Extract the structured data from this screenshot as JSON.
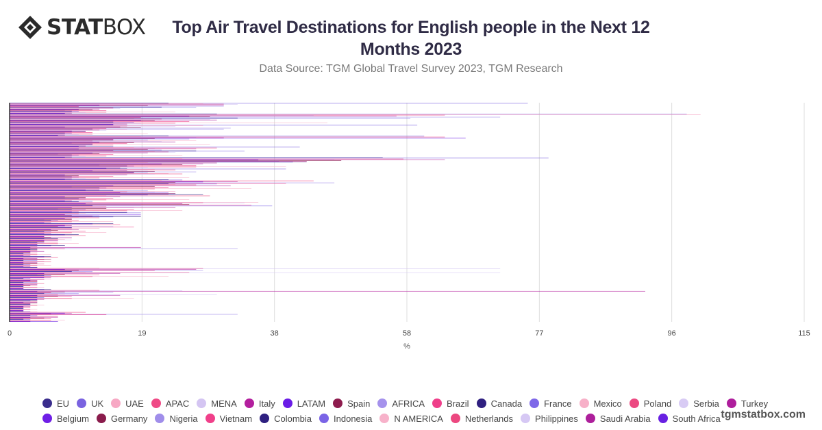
{
  "brand": {
    "logo_bold": "STAT",
    "logo_light": "BOX",
    "watermark": "tgmstatbox.com"
  },
  "colors": {
    "EU": "#3a2d8c",
    "UK": "#7a63e0",
    "UAE": "#f7a8c4",
    "APAC": "#ef4a86",
    "MENA": "#d4c5f2",
    "Italy": "#b31f9e",
    "LATAM": "#6a1ce6",
    "Spain": "#8e1c4e",
    "AFRICA": "#a592ec",
    "Brazil": "#ef3f8a",
    "Canada": "#2f2080",
    "France": "#7e68e8",
    "Mexico": "#f7b0c8",
    "Poland": "#ec4a82",
    "Serbia": "#d8cbf4",
    "Turkey": "#ae1e9c",
    "Belgium": "#6f1fe6",
    "Germany": "#8a1c4c",
    "Nigeria": "#a08eea",
    "Vietnam": "#f0408a",
    "Colombia": "#2e2080",
    "Indonesia": "#7a64e6",
    "N AMERICA": "#f7b2ca",
    "Netherlands": "#ec4880",
    "Philippines": "#d6c8f4",
    "Saudi Arabia": "#ad1f9b",
    "South Africa": "#6820e2",
    "gridline": "#dddddd",
    "axis": "#333333"
  },
  "chart_data": {
    "type": "bar",
    "orientation": "horizontal",
    "title": "Top Air Travel Destinations for English people in the Next 12 Months 2023",
    "subtitle": "Data Source: TGM Global Travel Survey 2023, TGM Research",
    "xlabel": "%",
    "ylabel": "",
    "xlim": [
      0,
      115
    ],
    "x_ticks": [
      "0",
      "19",
      "38",
      "58",
      "77",
      "96",
      "115"
    ],
    "grid": true,
    "legend_position": "bottom",
    "note": "Category labels on the y-axis are not visible in the image; 27 series of 20 values each are read from bar lengths.",
    "series": [
      {
        "name": "EU",
        "values": [
          23,
          30,
          15,
          23,
          15,
          54,
          17,
          23,
          15,
          10,
          17,
          15,
          10,
          8,
          6,
          4,
          2,
          6,
          4,
          2
        ]
      },
      {
        "name": "UK",
        "values": [
          75,
          98,
          59,
          60,
          42,
          78,
          40,
          25,
          20,
          12,
          19,
          12,
          8,
          6,
          5,
          4,
          3,
          5,
          3,
          3
        ]
      },
      {
        "name": "UAE",
        "values": [
          28,
          100,
          28,
          19,
          18,
          25,
          21,
          22,
          24,
          36,
          11,
          8,
          6,
          4,
          3,
          13,
          6,
          4,
          2,
          4
        ]
      },
      {
        "name": "APAC",
        "values": [
          31,
          63,
          17,
          63,
          30,
          57,
          24,
          44,
          17,
          28,
          10,
          16,
          11,
          4,
          7,
          28,
          5,
          13,
          4,
          11
        ]
      },
      {
        "name": "MENA",
        "values": [
          33,
          44,
          24,
          27,
          21,
          47,
          20,
          29,
          21,
          34,
          9,
          12,
          9,
          4,
          5,
          71,
          5,
          25,
          3,
          8
        ]
      },
      {
        "name": "Italy",
        "values": [
          31,
          56,
          16,
          31,
          27,
          63,
          17,
          33,
          16,
          25,
          8,
          9,
          5,
          19,
          4,
          27,
          4,
          92,
          4,
          9
        ]
      },
      {
        "name": "LATAM",
        "values": [
          13,
          26,
          8,
          66,
          10,
          36,
          12,
          28,
          23,
          11,
          19,
          8,
          5,
          3,
          2,
          8,
          3,
          4,
          2,
          8
        ]
      },
      {
        "name": "Spain",
        "values": [
          20,
          29,
          19,
          21,
          20,
          48,
          21,
          24,
          24,
          26,
          9,
          7,
          6,
          4,
          6,
          10,
          4,
          8,
          4,
          6
        ]
      },
      {
        "name": "AFRICA",
        "values": [
          31,
          71,
          32,
          26,
          22,
          39,
          27,
          47,
          24,
          19,
          13,
          15,
          9,
          33,
          4,
          28,
          3,
          15,
          3,
          33
        ]
      },
      {
        "name": "Brazil",
        "values": [
          10,
          19,
          14,
          15,
          15,
          43,
          18,
          40,
          23,
          35,
          12,
          18,
          9,
          8,
          5,
          21,
          4,
          6,
          3,
          14
        ]
      },
      {
        "name": "Canada",
        "values": [
          22,
          33,
          12,
          15,
          27,
          43,
          18,
          23,
          28,
          12,
          19,
          9,
          7,
          4,
          2,
          9,
          2,
          5,
          3,
          3
        ]
      },
      {
        "name": "France",
        "values": [
          27,
          58,
          31,
          20,
          34,
          41,
          20,
          30,
          20,
          38,
          15,
          9,
          5,
          3,
          4,
          12,
          4,
          10,
          3,
          4
        ]
      },
      {
        "name": "Mexico",
        "values": [
          15,
          18,
          17,
          27,
          21,
          20,
          23,
          24,
          14,
          12,
          10,
          13,
          8,
          4,
          5,
          11,
          4,
          8,
          5,
          4
        ]
      },
      {
        "name": "Poland",
        "values": [
          15,
          22,
          13,
          12,
          23,
          30,
          25,
          27,
          29,
          14,
          13,
          9,
          7,
          4,
          6,
          26,
          5,
          7,
          4,
          7
        ]
      },
      {
        "name": "Serbia",
        "values": [
          16,
          29,
          14,
          22,
          24,
          30,
          21,
          21,
          24,
          18,
          11,
          9,
          9,
          4,
          5,
          71,
          4,
          30,
          3,
          4
        ]
      },
      {
        "name": "Turkey",
        "values": [
          13,
          30,
          9,
          24,
          20,
          28,
          17,
          32,
          16,
          24,
          9,
          10,
          7,
          5,
          4,
          16,
          4,
          16,
          3,
          7
        ]
      },
      {
        "name": "Belgium",
        "values": [
          10,
          19,
          11,
          13,
          12,
          22,
          8,
          15,
          8,
          9,
          8,
          6,
          5,
          3,
          2,
          5,
          2,
          4,
          2,
          3
        ]
      },
      {
        "name": "Germany",
        "values": [
          12,
          21,
          11,
          18,
          13,
          25,
          10,
          21,
          11,
          14,
          9,
          7,
          5,
          3,
          4,
          8,
          3,
          7,
          2,
          5
        ]
      },
      {
        "name": "Nigeria",
        "values": [
          8,
          15,
          9,
          9,
          7,
          13,
          8,
          9,
          8,
          7,
          5,
          4,
          3,
          2,
          2,
          4,
          2,
          3,
          2,
          2
        ]
      },
      {
        "name": "Vietnam",
        "values": [
          14,
          26,
          12,
          17,
          15,
          27,
          15,
          23,
          15,
          18,
          10,
          11,
          7,
          4,
          5,
          13,
          4,
          9,
          3,
          6
        ]
      },
      {
        "name": "Colombia",
        "values": [
          9,
          15,
          8,
          12,
          9,
          17,
          9,
          13,
          10,
          9,
          6,
          5,
          4,
          2,
          2,
          5,
          2,
          4,
          2,
          2
        ]
      },
      {
        "name": "Indonesia",
        "values": [
          10,
          18,
          9,
          12,
          10,
          18,
          10,
          14,
          11,
          11,
          7,
          6,
          5,
          3,
          3,
          6,
          2,
          5,
          2,
          3
        ]
      },
      {
        "name": "N AMERICA",
        "values": [
          24,
          46,
          20,
          29,
          25,
          40,
          26,
          35,
          26,
          25,
          15,
          14,
          10,
          6,
          6,
          23,
          5,
          18,
          4,
          8
        ]
      },
      {
        "name": "Netherlands",
        "values": [
          14,
          24,
          12,
          15,
          14,
          27,
          13,
          21,
          14,
          17,
          9,
          9,
          7,
          4,
          4,
          12,
          4,
          9,
          3,
          6
        ]
      },
      {
        "name": "Philippines",
        "values": [
          11,
          19,
          10,
          12,
          11,
          20,
          11,
          15,
          12,
          13,
          7,
          7,
          5,
          3,
          3,
          7,
          3,
          6,
          2,
          3
        ]
      },
      {
        "name": "Saudi Arabia",
        "values": [
          9,
          17,
          8,
          11,
          9,
          16,
          9,
          13,
          9,
          10,
          6,
          6,
          4,
          3,
          3,
          6,
          2,
          5,
          2,
          3
        ]
      },
      {
        "name": "South Africa",
        "values": [
          8,
          15,
          7,
          10,
          8,
          14,
          8,
          11,
          8,
          9,
          5,
          5,
          4,
          2,
          2,
          5,
          2,
          4,
          2,
          7
        ]
      }
    ]
  }
}
